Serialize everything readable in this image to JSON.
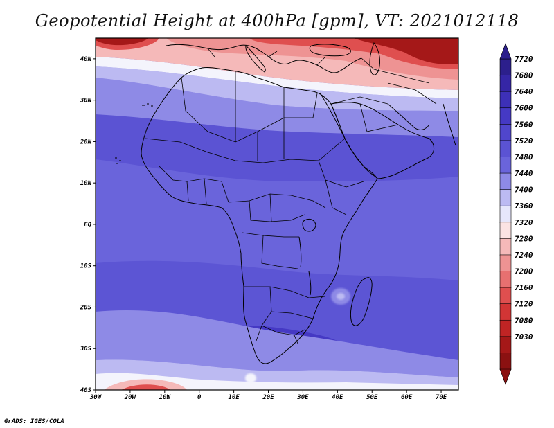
{
  "title": "Geopotential Height at 400hPa [gpm], VT: 2021012118",
  "credit": "GrADS: IGES/COLA",
  "map": {
    "extent": {
      "lon": [
        -30,
        75
      ],
      "lat": [
        -40,
        45
      ]
    },
    "lat_ticks": [
      {
        "value": 40,
        "label": "40N"
      },
      {
        "value": 30,
        "label": "30N"
      },
      {
        "value": 20,
        "label": "20N"
      },
      {
        "value": 10,
        "label": "10N"
      },
      {
        "value": 0,
        "label": "EQ"
      },
      {
        "value": -10,
        "label": "10S"
      },
      {
        "value": -20,
        "label": "20S"
      },
      {
        "value": -30,
        "label": "30S"
      },
      {
        "value": -40,
        "label": "40S"
      }
    ],
    "lon_ticks": [
      {
        "value": -30,
        "label": "30W"
      },
      {
        "value": -20,
        "label": "20W"
      },
      {
        "value": -10,
        "label": "10W"
      },
      {
        "value": 0,
        "label": "0"
      },
      {
        "value": 10,
        "label": "10E"
      },
      {
        "value": 20,
        "label": "20E"
      },
      {
        "value": 30,
        "label": "30E"
      },
      {
        "value": 40,
        "label": "40E"
      },
      {
        "value": 50,
        "label": "50E"
      },
      {
        "value": 60,
        "label": "60E"
      },
      {
        "value": 70,
        "label": "70E"
      }
    ]
  },
  "colorbar": {
    "labels": [
      "7720",
      "7680",
      "7640",
      "7600",
      "7560",
      "7520",
      "7480",
      "7440",
      "7400",
      "7360",
      "7320",
      "7280",
      "7240",
      "7200",
      "7160",
      "7120",
      "7080",
      "7030"
    ],
    "colors": [
      "#2c1f8c",
      "#3526a6",
      "#3d30b8",
      "#4539c4",
      "#5046cc",
      "#5b53d3",
      "#6a64db",
      "#8e8ae6",
      "#bcbaf2",
      "#e6e6fb",
      "#fbe3e3",
      "#f5b9b9",
      "#ee9393",
      "#e77070",
      "#df4f4f",
      "#d23535",
      "#c02424",
      "#a51818",
      "#8b1111"
    ]
  },
  "field_colors": {
    "deep_red": "#a51818",
    "red": "#df4f4f",
    "pink": "#f5b9b9",
    "white": "#f4f4fc",
    "light_blue": "#bcbaf2",
    "blue": "#6a64db",
    "mid_blue": "#5b53d3",
    "dark_blue": "#4539c4"
  }
}
